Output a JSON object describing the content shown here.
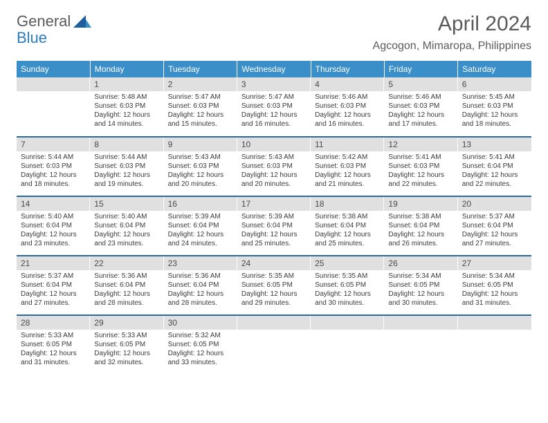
{
  "brand": {
    "part1": "General",
    "part2": "Blue"
  },
  "title": "April 2024",
  "location": "Agcogon, Mimaropa, Philippines",
  "colors": {
    "header_bg": "#3a8fc8",
    "header_text": "#ffffff",
    "daynum_bg": "#e0e0e0",
    "row_divider": "#2b6a9e",
    "body_text": "#3a3a3a",
    "title_text": "#5a5a5a",
    "logo_blue": "#2b7bbf"
  },
  "weekdays": [
    "Sunday",
    "Monday",
    "Tuesday",
    "Wednesday",
    "Thursday",
    "Friday",
    "Saturday"
  ],
  "weeks": [
    [
      null,
      {
        "n": "1",
        "sr": "5:48 AM",
        "ss": "6:03 PM",
        "dl": "12 hours and 14 minutes."
      },
      {
        "n": "2",
        "sr": "5:47 AM",
        "ss": "6:03 PM",
        "dl": "12 hours and 15 minutes."
      },
      {
        "n": "3",
        "sr": "5:47 AM",
        "ss": "6:03 PM",
        "dl": "12 hours and 16 minutes."
      },
      {
        "n": "4",
        "sr": "5:46 AM",
        "ss": "6:03 PM",
        "dl": "12 hours and 16 minutes."
      },
      {
        "n": "5",
        "sr": "5:46 AM",
        "ss": "6:03 PM",
        "dl": "12 hours and 17 minutes."
      },
      {
        "n": "6",
        "sr": "5:45 AM",
        "ss": "6:03 PM",
        "dl": "12 hours and 18 minutes."
      }
    ],
    [
      {
        "n": "7",
        "sr": "5:44 AM",
        "ss": "6:03 PM",
        "dl": "12 hours and 18 minutes."
      },
      {
        "n": "8",
        "sr": "5:44 AM",
        "ss": "6:03 PM",
        "dl": "12 hours and 19 minutes."
      },
      {
        "n": "9",
        "sr": "5:43 AM",
        "ss": "6:03 PM",
        "dl": "12 hours and 20 minutes."
      },
      {
        "n": "10",
        "sr": "5:43 AM",
        "ss": "6:03 PM",
        "dl": "12 hours and 20 minutes."
      },
      {
        "n": "11",
        "sr": "5:42 AM",
        "ss": "6:03 PM",
        "dl": "12 hours and 21 minutes."
      },
      {
        "n": "12",
        "sr": "5:41 AM",
        "ss": "6:03 PM",
        "dl": "12 hours and 22 minutes."
      },
      {
        "n": "13",
        "sr": "5:41 AM",
        "ss": "6:04 PM",
        "dl": "12 hours and 22 minutes."
      }
    ],
    [
      {
        "n": "14",
        "sr": "5:40 AM",
        "ss": "6:04 PM",
        "dl": "12 hours and 23 minutes."
      },
      {
        "n": "15",
        "sr": "5:40 AM",
        "ss": "6:04 PM",
        "dl": "12 hours and 23 minutes."
      },
      {
        "n": "16",
        "sr": "5:39 AM",
        "ss": "6:04 PM",
        "dl": "12 hours and 24 minutes."
      },
      {
        "n": "17",
        "sr": "5:39 AM",
        "ss": "6:04 PM",
        "dl": "12 hours and 25 minutes."
      },
      {
        "n": "18",
        "sr": "5:38 AM",
        "ss": "6:04 PM",
        "dl": "12 hours and 25 minutes."
      },
      {
        "n": "19",
        "sr": "5:38 AM",
        "ss": "6:04 PM",
        "dl": "12 hours and 26 minutes."
      },
      {
        "n": "20",
        "sr": "5:37 AM",
        "ss": "6:04 PM",
        "dl": "12 hours and 27 minutes."
      }
    ],
    [
      {
        "n": "21",
        "sr": "5:37 AM",
        "ss": "6:04 PM",
        "dl": "12 hours and 27 minutes."
      },
      {
        "n": "22",
        "sr": "5:36 AM",
        "ss": "6:04 PM",
        "dl": "12 hours and 28 minutes."
      },
      {
        "n": "23",
        "sr": "5:36 AM",
        "ss": "6:04 PM",
        "dl": "12 hours and 28 minutes."
      },
      {
        "n": "24",
        "sr": "5:35 AM",
        "ss": "6:05 PM",
        "dl": "12 hours and 29 minutes."
      },
      {
        "n": "25",
        "sr": "5:35 AM",
        "ss": "6:05 PM",
        "dl": "12 hours and 30 minutes."
      },
      {
        "n": "26",
        "sr": "5:34 AM",
        "ss": "6:05 PM",
        "dl": "12 hours and 30 minutes."
      },
      {
        "n": "27",
        "sr": "5:34 AM",
        "ss": "6:05 PM",
        "dl": "12 hours and 31 minutes."
      }
    ],
    [
      {
        "n": "28",
        "sr": "5:33 AM",
        "ss": "6:05 PM",
        "dl": "12 hours and 31 minutes."
      },
      {
        "n": "29",
        "sr": "5:33 AM",
        "ss": "6:05 PM",
        "dl": "12 hours and 32 minutes."
      },
      {
        "n": "30",
        "sr": "5:32 AM",
        "ss": "6:05 PM",
        "dl": "12 hours and 33 minutes."
      },
      null,
      null,
      null,
      null
    ]
  ],
  "labels": {
    "sunrise": "Sunrise:",
    "sunset": "Sunset:",
    "daylight": "Daylight:"
  }
}
